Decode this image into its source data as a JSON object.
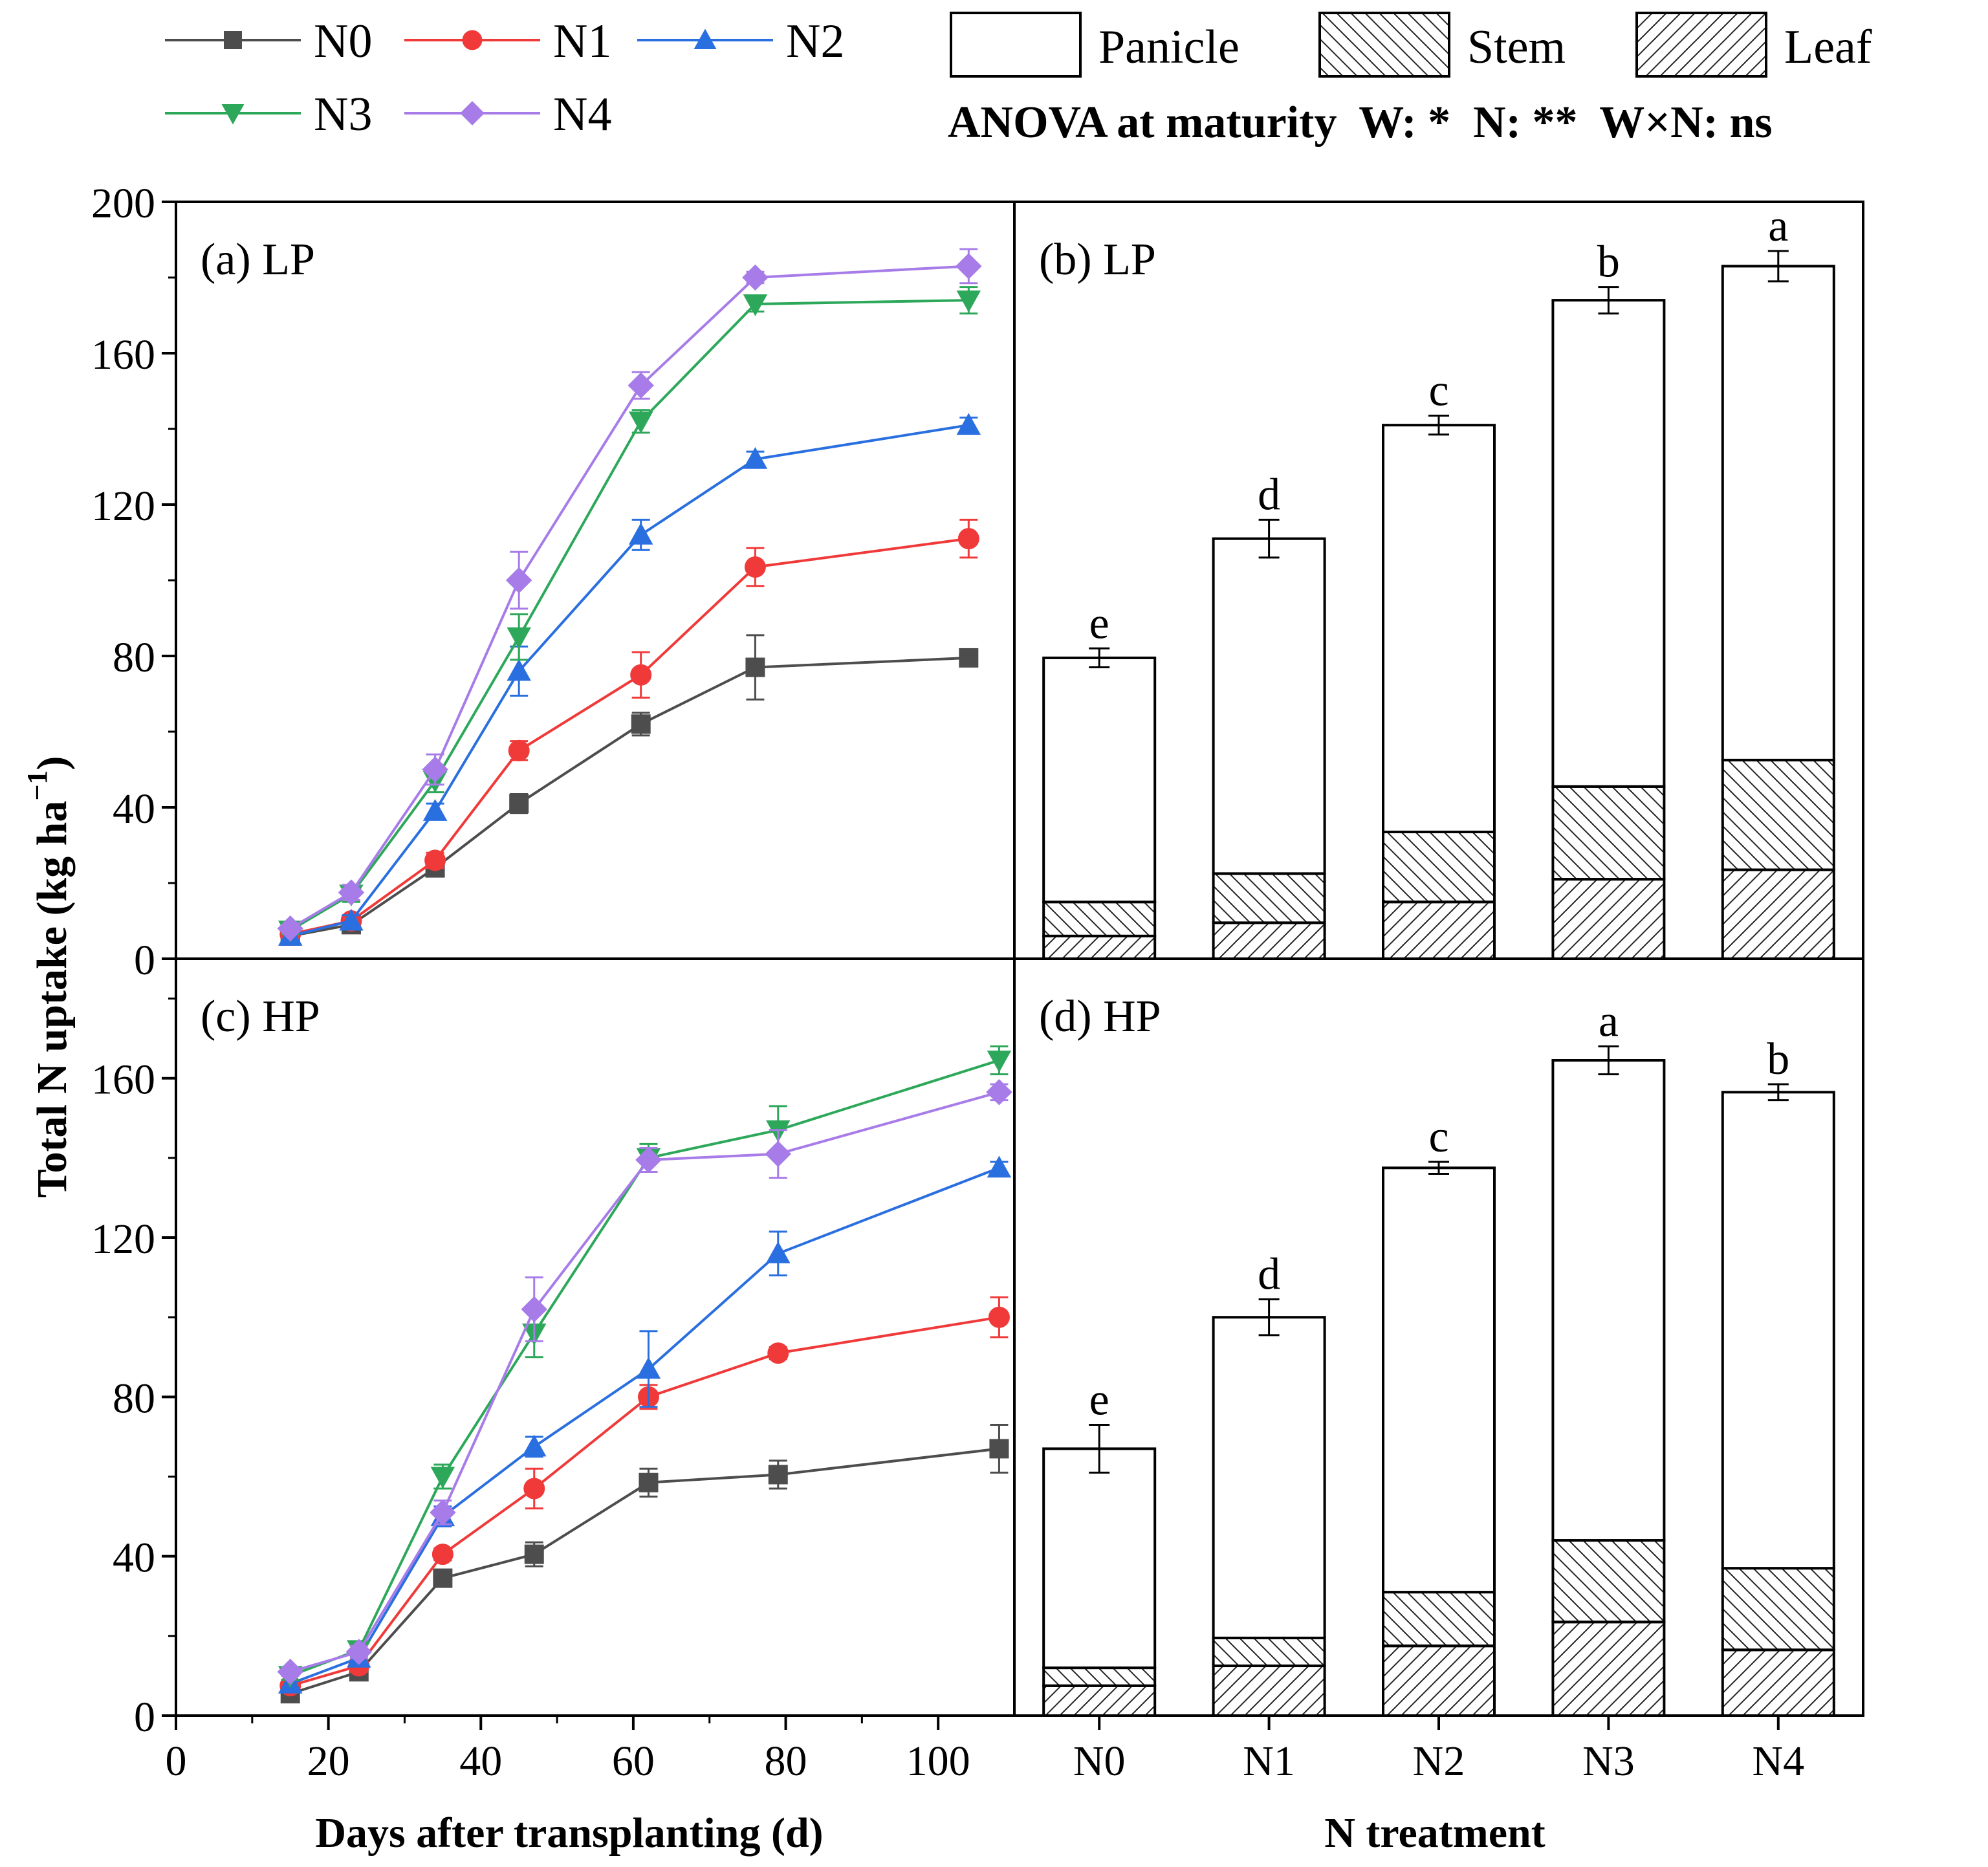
{
  "legend_lines": [
    {
      "name": "N0",
      "color": "#4d4d4d",
      "marker": "square"
    },
    {
      "name": "N1",
      "color": "#f03a3a",
      "marker": "circle"
    },
    {
      "name": "N2",
      "color": "#2a6fe0",
      "marker": "triangle-up"
    },
    {
      "name": "N3",
      "color": "#2da85a",
      "marker": "triangle-down"
    },
    {
      "name": "N4",
      "color": "#a77ce8",
      "marker": "diamond"
    }
  ],
  "legend_bars": [
    {
      "name": "Panicle",
      "pattern": "none"
    },
    {
      "name": "Stem",
      "pattern": "backslash"
    },
    {
      "name": "Leaf",
      "pattern": "slash"
    }
  ],
  "anova_text": "ANOVA at maturity  W: *  N: **  W×N: ns",
  "ylabel": "Total N uptake (kg ha",
  "ylabel_sup": "−1",
  "ylabel_close": ")",
  "xlabel_left": "Days after transplanting (d)",
  "xlabel_right": "N treatment",
  "chart_data": [
    {
      "panel": "(a)  LP",
      "type": "line",
      "xlim": [
        0,
        110
      ],
      "ylim": [
        0,
        200
      ],
      "xticks": [
        0,
        20,
        40,
        60,
        80,
        100
      ],
      "yticks": [
        0,
        40,
        80,
        120,
        160,
        200
      ],
      "series": [
        {
          "name": "N0",
          "x": [
            15,
            23,
            34,
            45,
            61,
            76,
            104
          ],
          "y": [
            6,
            9,
            24,
            41,
            62,
            77,
            79.5
          ],
          "err": [
            1,
            1.5,
            1.5,
            2.5,
            3,
            8.5,
            2
          ]
        },
        {
          "name": "N1",
          "x": [
            15,
            23,
            34,
            45,
            61,
            76,
            104
          ],
          "y": [
            6.5,
            10,
            26,
            55,
            75,
            103.5,
            111
          ],
          "err": [
            1,
            1.5,
            2,
            2.5,
            6,
            5,
            5
          ]
        },
        {
          "name": "N2",
          "x": [
            15,
            23,
            34,
            45,
            61,
            76,
            104
          ],
          "y": [
            6,
            10,
            39,
            76,
            112,
            132,
            141
          ],
          "err": [
            1,
            1.5,
            2,
            6.5,
            4,
            2,
            2
          ]
        },
        {
          "name": "N3",
          "x": [
            15,
            23,
            34,
            45,
            61,
            76,
            104
          ],
          "y": [
            7.5,
            17,
            47,
            85,
            142,
            173,
            174
          ],
          "err": [
            1,
            2,
            3,
            6,
            3,
            2,
            3.5
          ]
        },
        {
          "name": "N4",
          "x": [
            15,
            23,
            34,
            45,
            61,
            76,
            104
          ],
          "y": [
            8,
            17.5,
            50,
            100,
            151.5,
            180,
            183
          ],
          "err": [
            1,
            2,
            4,
            7.5,
            3.5,
            1.5,
            4.5
          ]
        }
      ]
    },
    {
      "panel": "(b) LP",
      "type": "bar",
      "stacked": true,
      "ylim": [
        0,
        200
      ],
      "categories": [
        "N0",
        "N1",
        "N2",
        "N3",
        "N4"
      ],
      "series": [
        {
          "name": "Leaf",
          "values": [
            6,
            9.5,
            15,
            21,
            23.5
          ]
        },
        {
          "name": "Stem",
          "values": [
            9,
            13,
            18.5,
            24.5,
            29
          ]
        },
        {
          "name": "Panicle",
          "values": [
            64.5,
            88.5,
            107.5,
            128.5,
            130.5
          ]
        }
      ],
      "totals": [
        79.5,
        111,
        141,
        174,
        183
      ],
      "err": [
        2.5,
        5,
        2.5,
        3.5,
        4
      ],
      "letters": [
        "e",
        "d",
        "c",
        "b",
        "a"
      ]
    },
    {
      "panel": "(c)  HP",
      "type": "line",
      "xlim": [
        0,
        110
      ],
      "ylim": [
        0,
        190
      ],
      "xticks": [
        0,
        20,
        40,
        60,
        80,
        100
      ],
      "yticks": [
        0,
        40,
        80,
        120,
        160
      ],
      "series": [
        {
          "name": "N0",
          "x": [
            15,
            24,
            35,
            47,
            62,
            79,
            108
          ],
          "y": [
            5.5,
            11,
            34.5,
            40.5,
            58.5,
            60.5,
            67
          ],
          "err": [
            1,
            1.5,
            1.5,
            3,
            3.5,
            3.5,
            6
          ]
        },
        {
          "name": "N1",
          "x": [
            15,
            24,
            35,
            47,
            62,
            79,
            108
          ],
          "y": [
            7.5,
            12.5,
            40.5,
            57,
            80,
            91,
            100
          ],
          "err": [
            1,
            1.5,
            1.5,
            5,
            3,
            1.5,
            5
          ]
        },
        {
          "name": "N2",
          "x": [
            15,
            24,
            35,
            47,
            62,
            79,
            108
          ],
          "y": [
            8,
            14.5,
            50,
            67.5,
            87,
            116,
            137.5
          ],
          "err": [
            1,
            1.5,
            2.5,
            2.5,
            9.5,
            5.5,
            1.5
          ]
        },
        {
          "name": "N3",
          "x": [
            15,
            24,
            35,
            47,
            62,
            79,
            108
          ],
          "y": [
            10,
            16.5,
            60,
            96,
            140,
            147,
            164.5
          ],
          "err": [
            1,
            1.5,
            3,
            6,
            3.5,
            6,
            3.5
          ]
        },
        {
          "name": "N4",
          "x": [
            15,
            24,
            35,
            47,
            62,
            79,
            108
          ],
          "y": [
            11,
            16,
            51,
            102,
            139.5,
            141,
            156.5
          ],
          "err": [
            1,
            1.5,
            3,
            8,
            3,
            6,
            2
          ]
        }
      ]
    },
    {
      "panel": "(d) HP",
      "type": "bar",
      "stacked": true,
      "ylim": [
        0,
        190
      ],
      "categories": [
        "N0",
        "N1",
        "N2",
        "N3",
        "N4"
      ],
      "series": [
        {
          "name": "Leaf",
          "values": [
            7.5,
            12.5,
            17.5,
            23.5,
            16.5
          ]
        },
        {
          "name": "Stem",
          "values": [
            4.5,
            7,
            13.5,
            20.5,
            20.5
          ]
        },
        {
          "name": "Panicle",
          "values": [
            55,
            80.5,
            106.5,
            120.5,
            119.5
          ]
        }
      ],
      "totals": [
        67,
        100,
        137.5,
        164.5,
        156.5
      ],
      "err": [
        6,
        4.5,
        1.5,
        3.5,
        2
      ],
      "letters": [
        "e",
        "d",
        "c",
        "a",
        "b"
      ]
    }
  ]
}
